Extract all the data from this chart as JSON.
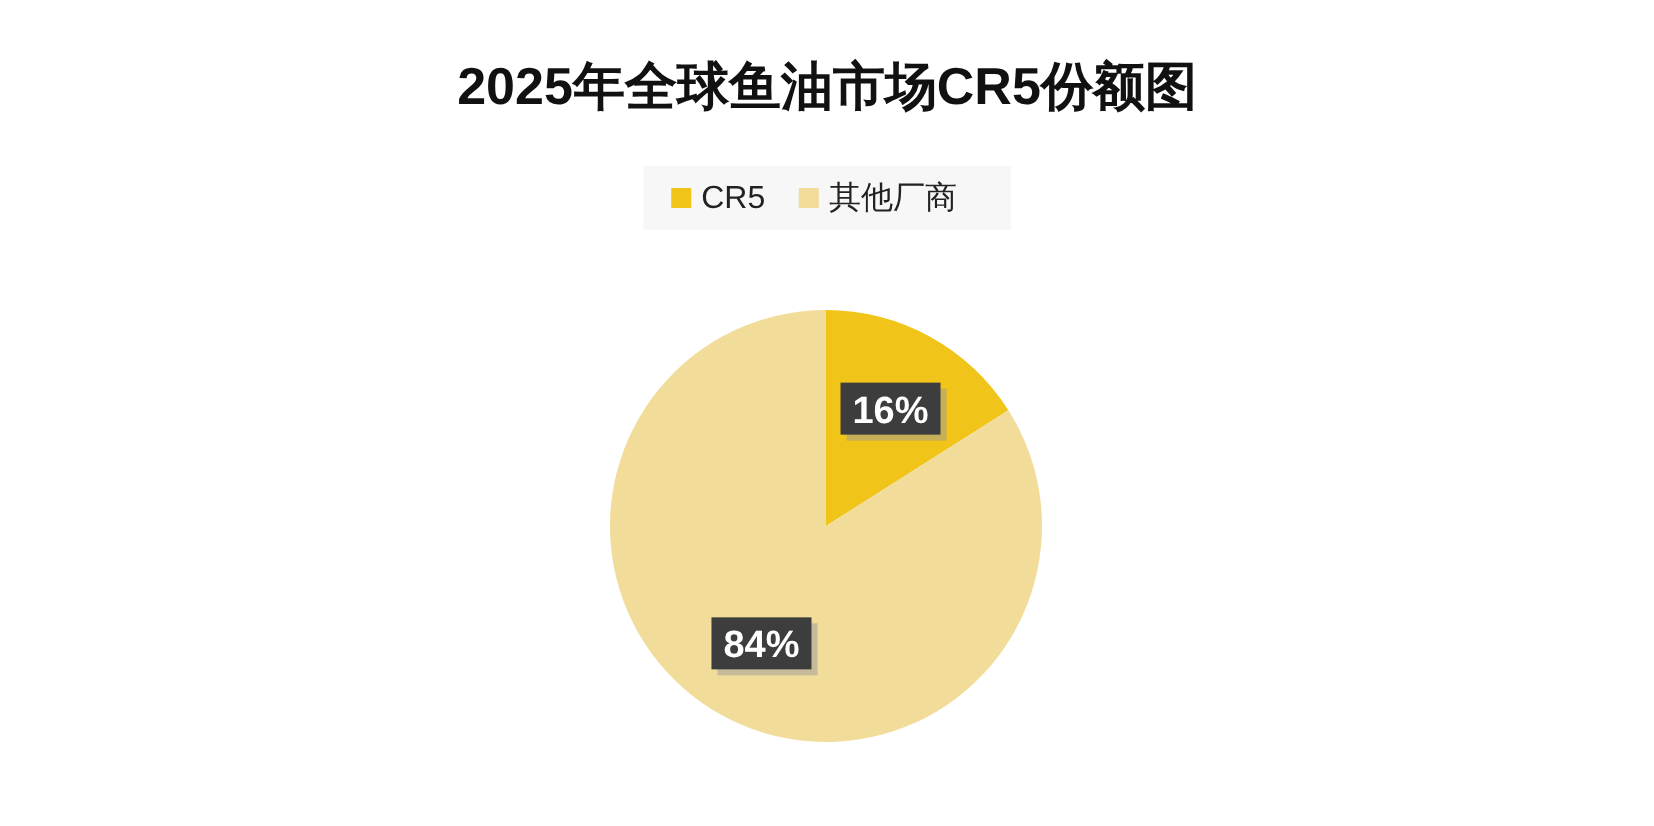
{
  "chart_data": {
    "type": "pie",
    "title": "2025年全球鱼油市场CR5份额图",
    "categories": [
      "CR5",
      "其他厂商"
    ],
    "values": [
      16,
      84
    ],
    "colors": [
      "#f0c419",
      "#f1dc9a"
    ],
    "value_labels": [
      "16%",
      "84%"
    ],
    "legend": "top"
  }
}
